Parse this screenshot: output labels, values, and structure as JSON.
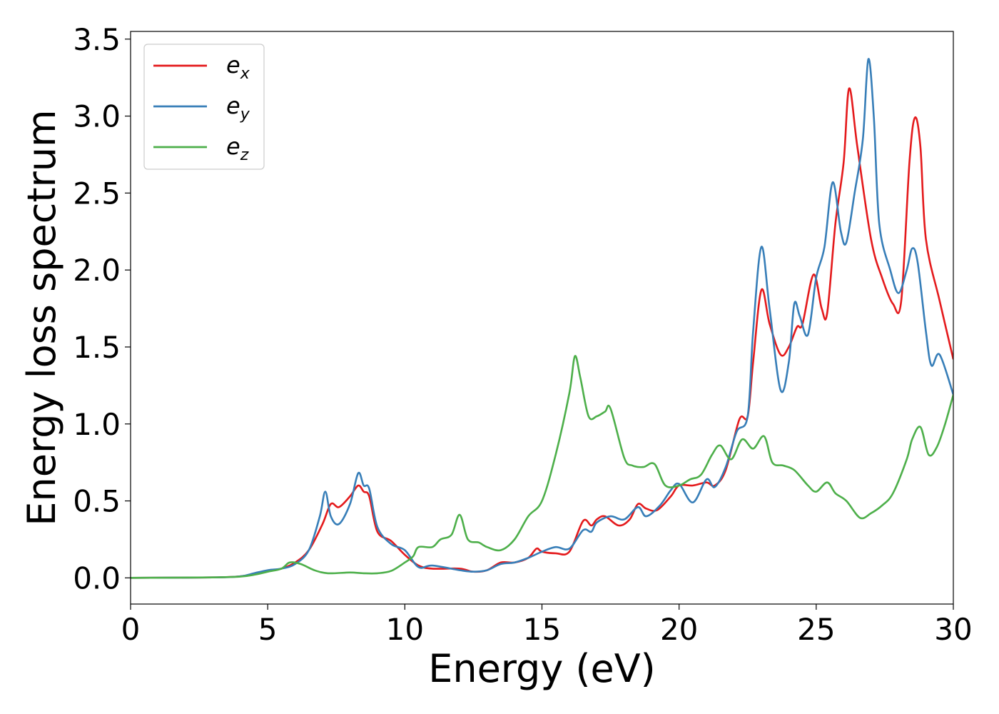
{
  "chart_data": {
    "type": "line",
    "xlabel": "Energy (eV)",
    "ylabel": "Energy loss spectrum",
    "xlim": [
      0,
      30
    ],
    "ylim": [
      -0.17,
      3.55
    ],
    "xticks": [
      "0",
      "5",
      "10",
      "15",
      "20",
      "25",
      "30"
    ],
    "yticks": [
      "0.0",
      "0.5",
      "1.0",
      "1.5",
      "2.0",
      "2.5",
      "3.0",
      "3.5"
    ],
    "grid": false,
    "legend_position": "top-left",
    "series": [
      {
        "name": "e",
        "subscript": "x",
        "color": "#e41a1c",
        "points": [
          [
            0,
            0
          ],
          [
            3,
            0.003
          ],
          [
            4,
            0.01
          ],
          [
            4.5,
            0.025
          ],
          [
            5,
            0.045
          ],
          [
            5.5,
            0.06
          ],
          [
            6,
            0.1
          ],
          [
            6.5,
            0.18
          ],
          [
            7,
            0.35
          ],
          [
            7.3,
            0.48
          ],
          [
            7.6,
            0.46
          ],
          [
            8,
            0.53
          ],
          [
            8.3,
            0.6
          ],
          [
            8.5,
            0.56
          ],
          [
            8.7,
            0.53
          ],
          [
            9,
            0.3
          ],
          [
            9.5,
            0.24
          ],
          [
            10,
            0.15
          ],
          [
            10.5,
            0.08
          ],
          [
            11,
            0.06
          ],
          [
            12,
            0.06
          ],
          [
            12.5,
            0.04
          ],
          [
            13,
            0.05
          ],
          [
            13.5,
            0.1
          ],
          [
            14,
            0.1
          ],
          [
            14.5,
            0.13
          ],
          [
            14.8,
            0.19
          ],
          [
            15,
            0.17
          ],
          [
            15.5,
            0.16
          ],
          [
            16,
            0.17
          ],
          [
            16.5,
            0.37
          ],
          [
            16.8,
            0.34
          ],
          [
            17,
            0.38
          ],
          [
            17.3,
            0.4
          ],
          [
            17.8,
            0.34
          ],
          [
            18.2,
            0.38
          ],
          [
            18.5,
            0.48
          ],
          [
            18.8,
            0.45
          ],
          [
            19.2,
            0.44
          ],
          [
            19.7,
            0.53
          ],
          [
            20,
            0.6
          ],
          [
            20.5,
            0.6
          ],
          [
            21,
            0.62
          ],
          [
            21.3,
            0.6
          ],
          [
            21.7,
            0.7
          ],
          [
            22.2,
            1.03
          ],
          [
            22.5,
            1.05
          ],
          [
            22.7,
            1.4
          ],
          [
            23,
            1.87
          ],
          [
            23.3,
            1.65
          ],
          [
            23.7,
            1.45
          ],
          [
            24,
            1.5
          ],
          [
            24.3,
            1.63
          ],
          [
            24.5,
            1.65
          ],
          [
            24.9,
            1.97
          ],
          [
            25.2,
            1.75
          ],
          [
            25.4,
            1.72
          ],
          [
            25.7,
            2.3
          ],
          [
            26,
            2.7
          ],
          [
            26.2,
            3.18
          ],
          [
            26.5,
            2.8
          ],
          [
            27,
            2.2
          ],
          [
            27.4,
            1.95
          ],
          [
            27.8,
            1.78
          ],
          [
            28.1,
            1.8
          ],
          [
            28.4,
            2.7
          ],
          [
            28.6,
            2.99
          ],
          [
            28.8,
            2.8
          ],
          [
            29,
            2.2
          ],
          [
            29.5,
            1.8
          ],
          [
            30,
            1.42
          ]
        ]
      },
      {
        "name": "e",
        "subscript": "y",
        "color": "#377eb8",
        "points": [
          [
            0,
            0
          ],
          [
            3,
            0.003
          ],
          [
            4,
            0.01
          ],
          [
            4.5,
            0.03
          ],
          [
            5,
            0.05
          ],
          [
            5.5,
            0.06
          ],
          [
            6,
            0.09
          ],
          [
            6.5,
            0.18
          ],
          [
            6.9,
            0.4
          ],
          [
            7.1,
            0.56
          ],
          [
            7.3,
            0.4
          ],
          [
            7.6,
            0.35
          ],
          [
            8,
            0.48
          ],
          [
            8.3,
            0.68
          ],
          [
            8.5,
            0.6
          ],
          [
            8.7,
            0.58
          ],
          [
            9,
            0.33
          ],
          [
            9.5,
            0.22
          ],
          [
            10,
            0.18
          ],
          [
            10.5,
            0.07
          ],
          [
            11,
            0.08
          ],
          [
            12,
            0.05
          ],
          [
            12.5,
            0.04
          ],
          [
            13,
            0.05
          ],
          [
            13.5,
            0.09
          ],
          [
            14,
            0.1
          ],
          [
            14.5,
            0.13
          ],
          [
            15,
            0.17
          ],
          [
            15.5,
            0.2
          ],
          [
            16,
            0.19
          ],
          [
            16.5,
            0.31
          ],
          [
            16.8,
            0.3
          ],
          [
            17,
            0.36
          ],
          [
            17.5,
            0.4
          ],
          [
            18,
            0.38
          ],
          [
            18.5,
            0.46
          ],
          [
            18.8,
            0.4
          ],
          [
            19.3,
            0.47
          ],
          [
            19.7,
            0.57
          ],
          [
            20,
            0.61
          ],
          [
            20.5,
            0.49
          ],
          [
            21,
            0.64
          ],
          [
            21.3,
            0.59
          ],
          [
            21.7,
            0.72
          ],
          [
            22.1,
            0.95
          ],
          [
            22.5,
            1.05
          ],
          [
            22.7,
            1.6
          ],
          [
            23,
            2.15
          ],
          [
            23.3,
            1.75
          ],
          [
            23.7,
            1.22
          ],
          [
            24,
            1.4
          ],
          [
            24.2,
            1.78
          ],
          [
            24.4,
            1.7
          ],
          [
            24.7,
            1.58
          ],
          [
            25,
            1.95
          ],
          [
            25.3,
            2.15
          ],
          [
            25.6,
            2.57
          ],
          [
            25.9,
            2.25
          ],
          [
            26.1,
            2.18
          ],
          [
            26.4,
            2.5
          ],
          [
            26.7,
            2.85
          ],
          [
            26.9,
            3.37
          ],
          [
            27.1,
            3.0
          ],
          [
            27.3,
            2.3
          ],
          [
            27.7,
            2.0
          ],
          [
            28,
            1.85
          ],
          [
            28.3,
            2.0
          ],
          [
            28.5,
            2.14
          ],
          [
            28.7,
            2.05
          ],
          [
            29,
            1.6
          ],
          [
            29.2,
            1.38
          ],
          [
            29.5,
            1.45
          ],
          [
            30,
            1.19
          ]
        ]
      },
      {
        "name": "e",
        "subscript": "z",
        "color": "#4daf4a",
        "points": [
          [
            0,
            0
          ],
          [
            3,
            0.003
          ],
          [
            4,
            0.008
          ],
          [
            4.5,
            0.02
          ],
          [
            5,
            0.04
          ],
          [
            5.5,
            0.06
          ],
          [
            5.8,
            0.1
          ],
          [
            6.2,
            0.09
          ],
          [
            6.7,
            0.05
          ],
          [
            7.2,
            0.03
          ],
          [
            8,
            0.035
          ],
          [
            8.5,
            0.03
          ],
          [
            9,
            0.03
          ],
          [
            9.5,
            0.045
          ],
          [
            10,
            0.1
          ],
          [
            10.3,
            0.14
          ],
          [
            10.5,
            0.2
          ],
          [
            11,
            0.2
          ],
          [
            11.3,
            0.25
          ],
          [
            11.7,
            0.28
          ],
          [
            12,
            0.41
          ],
          [
            12.3,
            0.25
          ],
          [
            12.7,
            0.23
          ],
          [
            13,
            0.2
          ],
          [
            13.5,
            0.18
          ],
          [
            14,
            0.25
          ],
          [
            14.5,
            0.4
          ],
          [
            15,
            0.5
          ],
          [
            15.5,
            0.8
          ],
          [
            16,
            1.2
          ],
          [
            16.2,
            1.44
          ],
          [
            16.4,
            1.3
          ],
          [
            16.7,
            1.05
          ],
          [
            17,
            1.05
          ],
          [
            17.3,
            1.08
          ],
          [
            17.5,
            1.1
          ],
          [
            18,
            0.78
          ],
          [
            18.3,
            0.73
          ],
          [
            18.7,
            0.72
          ],
          [
            19.1,
            0.74
          ],
          [
            19.5,
            0.6
          ],
          [
            20,
            0.6
          ],
          [
            20.4,
            0.64
          ],
          [
            20.8,
            0.67
          ],
          [
            21.2,
            0.8
          ],
          [
            21.5,
            0.86
          ],
          [
            21.9,
            0.77
          ],
          [
            22.3,
            0.9
          ],
          [
            22.7,
            0.84
          ],
          [
            23.1,
            0.92
          ],
          [
            23.4,
            0.75
          ],
          [
            23.8,
            0.73
          ],
          [
            24.2,
            0.7
          ],
          [
            24.7,
            0.6
          ],
          [
            25,
            0.56
          ],
          [
            25.4,
            0.62
          ],
          [
            25.7,
            0.55
          ],
          [
            26.1,
            0.5
          ],
          [
            26.6,
            0.39
          ],
          [
            27,
            0.42
          ],
          [
            27.4,
            0.47
          ],
          [
            27.8,
            0.55
          ],
          [
            28.3,
            0.77
          ],
          [
            28.5,
            0.9
          ],
          [
            28.8,
            0.98
          ],
          [
            29.1,
            0.8
          ],
          [
            29.4,
            0.85
          ],
          [
            29.7,
            1.0
          ],
          [
            30,
            1.19
          ]
        ]
      }
    ]
  }
}
